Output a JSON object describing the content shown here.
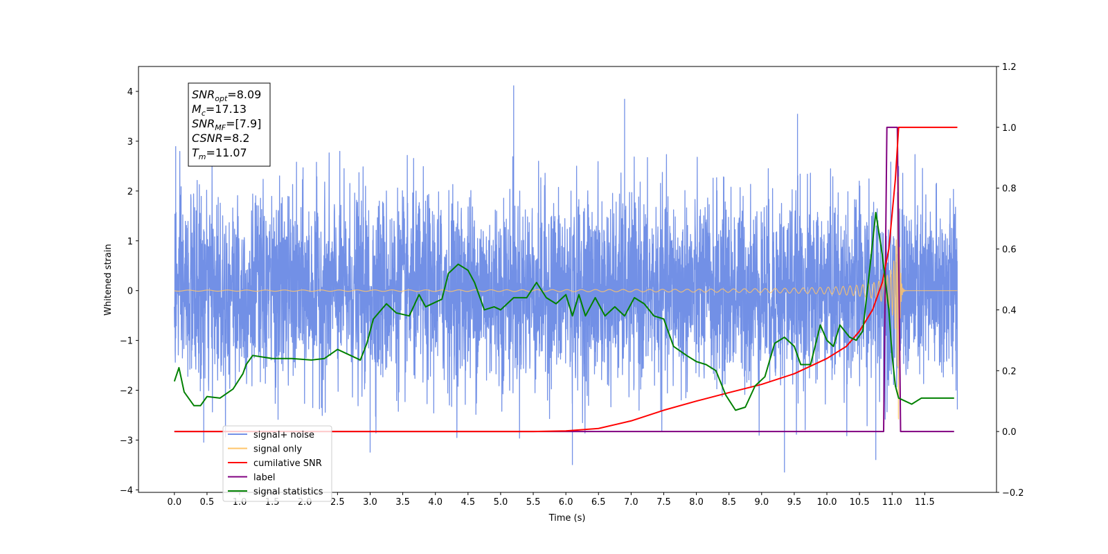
{
  "chart_data": {
    "type": "line",
    "xlabel": "Time (s)",
    "ylabel": "Whitened strain",
    "xlim": [
      -0.55,
      12.6
    ],
    "ylim": [
      -4.05,
      4.5
    ],
    "y2lim": [
      -0.2,
      1.2
    ],
    "x_ticks": [
      0.0,
      0.5,
      1.0,
      1.5,
      2.0,
      2.5,
      3.0,
      3.5,
      4.0,
      4.5,
      5.0,
      5.5,
      6.0,
      6.5,
      7.0,
      7.5,
      8.0,
      8.5,
      9.0,
      9.5,
      10.0,
      10.5,
      11.0,
      11.5
    ],
    "x_tick_labels": [
      "0.0",
      "0.5",
      "1.0",
      "1.5",
      "2.0",
      "2.5",
      "3.0",
      "3.5",
      "4.0",
      "4.5",
      "5.0",
      "5.5",
      "6.0",
      "6.5",
      "7.0",
      "7.5",
      "8.0",
      "8.5",
      "9.0",
      "9.5",
      "10.0",
      "10.5",
      "11.0",
      "11.5"
    ],
    "y_ticks": [
      -4,
      -3,
      -2,
      -1,
      0,
      1,
      2,
      3,
      4
    ],
    "y_tick_labels": [
      "−4",
      "−3",
      "−2",
      "−1",
      "0",
      "1",
      "2",
      "3",
      "4"
    ],
    "y2_ticks": [
      -0.2,
      0.0,
      0.2,
      0.4,
      0.6,
      0.8,
      1.0,
      1.2
    ],
    "y2_tick_labels": [
      "−0.2",
      "0.0",
      "0.2",
      "0.4",
      "0.6",
      "0.8",
      "1.0",
      "1.2"
    ],
    "grid": false,
    "legend_position": "lower-left",
    "legend": [
      {
        "label": "signal+ noise",
        "color": "#7290e6"
      },
      {
        "label": "signal only",
        "color": "#ffc468"
      },
      {
        "label": "cumilative SNR",
        "color": "#ff0000"
      },
      {
        "label": "label",
        "color": "#800080"
      },
      {
        "label": "signal statistics",
        "color": "#008000"
      }
    ],
    "annotation_lines": [
      {
        "label": "SNR",
        "sub": "opt",
        "value": "=8.09"
      },
      {
        "label": "M",
        "sub": "c",
        "value": "=17.13"
      },
      {
        "label": "SNR",
        "sub": "MF",
        "value": "=[7.9]"
      },
      {
        "label": "CSNR",
        "sub": "",
        "value": "=8.2"
      },
      {
        "label": "T",
        "sub": "m",
        "value": "=11.07"
      }
    ],
    "noise": {
      "name": "signal+ noise",
      "color": "#7290e6",
      "x_range": [
        0.0,
        12.0
      ],
      "typical_envelope": [
        -2.0,
        2.2
      ],
      "notable_peaks": [
        {
          "x": 0.02,
          "y": 2.9
        },
        {
          "x": 5.2,
          "y": 4.12
        },
        {
          "x": 6.9,
          "y": 3.85
        },
        {
          "x": 9.55,
          "y": 3.55
        },
        {
          "x": 6.1,
          "y": -3.5
        },
        {
          "x": 9.35,
          "y": -3.65
        },
        {
          "x": 10.75,
          "y": -3.4
        },
        {
          "x": 3.0,
          "y": -3.25
        },
        {
          "x": 0.45,
          "y": -3.05
        }
      ]
    },
    "signal_only": {
      "name": "signal only",
      "color": "#ffc468",
      "x_range": [
        0.0,
        12.0
      ],
      "merger_time": 11.07,
      "peak_amplitude": 2.6
    },
    "series": [
      {
        "name": "cumilative SNR",
        "axis": "right",
        "color": "#ff0000",
        "x": [
          0.0,
          5.5,
          6.0,
          6.5,
          7.0,
          7.5,
          8.0,
          8.5,
          9.0,
          9.5,
          10.0,
          10.3,
          10.5,
          10.7,
          10.85,
          10.95,
          11.05,
          11.1,
          12.0
        ],
        "values": [
          0.0,
          0.0,
          0.002,
          0.01,
          0.035,
          0.07,
          0.1,
          0.128,
          0.155,
          0.19,
          0.24,
          0.28,
          0.33,
          0.4,
          0.49,
          0.6,
          0.83,
          1.0,
          1.0
        ]
      },
      {
        "name": "label",
        "axis": "right",
        "color": "#800080",
        "x": [
          0.0,
          10.87,
          10.92,
          11.08,
          11.13,
          11.95
        ],
        "values": [
          0.0,
          0.0,
          1.0,
          1.0,
          0.0,
          0.0
        ]
      },
      {
        "name": "signal statistics",
        "axis": "right",
        "color": "#008000",
        "x": [
          0.0,
          0.07,
          0.15,
          0.3,
          0.4,
          0.5,
          0.7,
          0.9,
          1.05,
          1.1,
          1.2,
          1.5,
          1.8,
          2.1,
          2.3,
          2.5,
          2.7,
          2.85,
          2.95,
          3.05,
          3.25,
          3.4,
          3.6,
          3.75,
          3.85,
          4.0,
          4.1,
          4.2,
          4.35,
          4.5,
          4.6,
          4.75,
          4.9,
          5.0,
          5.2,
          5.4,
          5.55,
          5.7,
          5.85,
          6.0,
          6.1,
          6.2,
          6.3,
          6.45,
          6.6,
          6.75,
          6.9,
          7.05,
          7.2,
          7.35,
          7.5,
          7.65,
          7.85,
          8.0,
          8.15,
          8.3,
          8.45,
          8.6,
          8.75,
          8.9,
          9.05,
          9.2,
          9.35,
          9.5,
          9.6,
          9.75,
          9.9,
          10.0,
          10.1,
          10.2,
          10.35,
          10.45,
          10.55,
          10.65,
          10.75,
          10.85,
          10.95,
          11.0,
          11.05,
          11.1,
          11.2,
          11.3,
          11.45,
          11.6,
          11.75,
          11.85,
          11.95
        ],
        "values": [
          0.165,
          0.21,
          0.13,
          0.085,
          0.085,
          0.115,
          0.11,
          0.14,
          0.19,
          0.22,
          0.25,
          0.24,
          0.24,
          0.235,
          0.24,
          0.27,
          0.25,
          0.235,
          0.29,
          0.37,
          0.42,
          0.39,
          0.38,
          0.45,
          0.41,
          0.425,
          0.435,
          0.52,
          0.55,
          0.53,
          0.49,
          0.4,
          0.41,
          0.4,
          0.44,
          0.44,
          0.49,
          0.44,
          0.42,
          0.45,
          0.38,
          0.45,
          0.38,
          0.44,
          0.38,
          0.41,
          0.38,
          0.44,
          0.42,
          0.38,
          0.37,
          0.28,
          0.25,
          0.23,
          0.22,
          0.2,
          0.12,
          0.07,
          0.08,
          0.15,
          0.18,
          0.29,
          0.31,
          0.28,
          0.22,
          0.22,
          0.35,
          0.3,
          0.28,
          0.35,
          0.31,
          0.3,
          0.33,
          0.52,
          0.72,
          0.58,
          0.4,
          0.25,
          0.15,
          0.11,
          0.1,
          0.09,
          0.11,
          0.11,
          0.11,
          0.11,
          0.11
        ]
      }
    ]
  }
}
